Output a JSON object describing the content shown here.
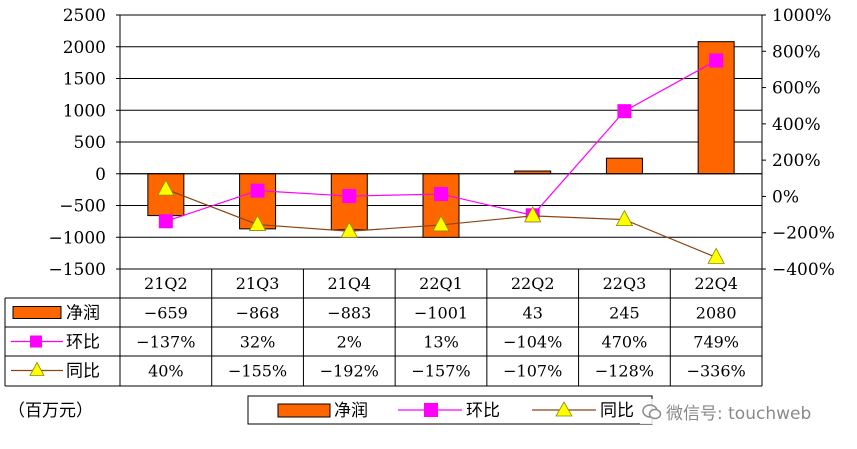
{
  "chart_data": {
    "type": "bar",
    "categories": [
      "21Q2",
      "21Q3",
      "21Q4",
      "22Q1",
      "22Q2",
      "22Q3",
      "22Q4"
    ],
    "series": [
      {
        "name": "净润",
        "type": "bar",
        "axis": "left",
        "values": [
          -659,
          -868,
          -883,
          -1001,
          43,
          245,
          2080
        ],
        "labels": [
          "−659",
          "−868",
          "−883",
          "−1001",
          "43",
          "245",
          "2080"
        ],
        "color": "#FF6600"
      },
      {
        "name": "环比",
        "type": "line",
        "axis": "right",
        "marker": "square",
        "values": [
          -137,
          32,
          2,
          13,
          -104,
          470,
          749
        ],
        "labels": [
          "−137%",
          "32%",
          "2%",
          "13%",
          "−104%",
          "470%",
          "749%"
        ],
        "color": "#FF00FF"
      },
      {
        "name": "同比",
        "type": "line",
        "axis": "right",
        "marker": "triangle",
        "values": [
          40,
          -155,
          -192,
          -157,
          -107,
          -128,
          -336
        ],
        "labels": [
          "40%",
          "−155%",
          "−192%",
          "−157%",
          "−107%",
          "−128%",
          "−336%"
        ],
        "color": "#8B4513",
        "marker_color": "#FFFF00"
      }
    ],
    "ylim_left": [
      -1500,
      2500
    ],
    "yticks_left": [
      -1500,
      -1000,
      -500,
      0,
      500,
      1000,
      1500,
      2000,
      2500
    ],
    "ytick_labels_left": [
      "−1500",
      "−1000",
      "−500",
      "0",
      "500",
      "1000",
      "1500",
      "2000",
      "2500"
    ],
    "ylim_right": [
      -400,
      1000
    ],
    "yticks_right": [
      -400,
      -200,
      0,
      200,
      400,
      600,
      800,
      1000
    ],
    "ytick_labels_right": [
      "−400%",
      "−200%",
      "0%",
      "200%",
      "400%",
      "600%",
      "800%",
      "1000%"
    ],
    "grid": true,
    "data_table": true,
    "legend": "bottom-center"
  },
  "unit_label": "（百万元）",
  "watermark": "微信号: touchweb"
}
